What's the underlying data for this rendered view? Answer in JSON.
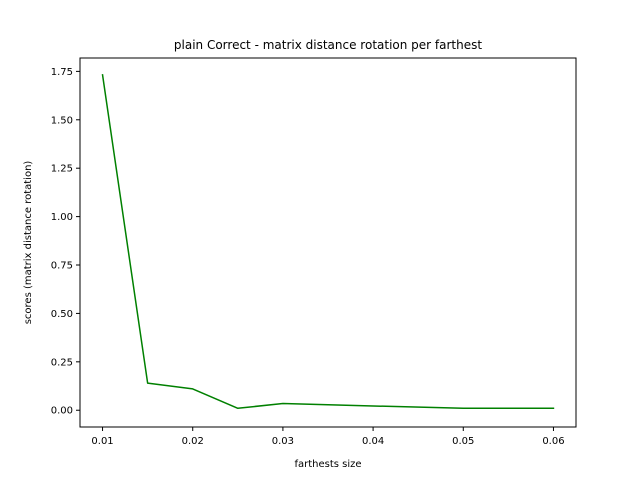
{
  "chart_data": {
    "type": "line",
    "title": "plain Correct - matrix distance rotation per farthest",
    "xlabel": "farthests size",
    "ylabel": "scores (matrix distance rotation)",
    "xlim": [
      0.0075,
      0.0625
    ],
    "ylim": [
      -0.0866,
      1.8191
    ],
    "xticks": [
      0.01,
      0.02,
      0.03,
      0.04,
      0.05,
      0.06
    ],
    "xtick_labels": [
      "0.01",
      "0.02",
      "0.03",
      "0.04",
      "0.05",
      "0.06"
    ],
    "yticks": [
      0.0,
      0.25,
      0.5,
      0.75,
      1.0,
      1.25,
      1.5,
      1.75
    ],
    "ytick_labels": [
      "0.00",
      "0.25",
      "0.50",
      "0.75",
      "1.00",
      "1.25",
      "1.50",
      "1.75"
    ],
    "grid": false,
    "legend": "none",
    "series": [
      {
        "color": "#008000",
        "x": [
          0.01,
          0.015,
          0.02,
          0.025,
          0.03,
          0.04,
          0.05,
          0.06
        ],
        "y": [
          1.732,
          0.14,
          0.11,
          0.01,
          0.035,
          0.022,
          0.01,
          0.01
        ]
      }
    ]
  }
}
